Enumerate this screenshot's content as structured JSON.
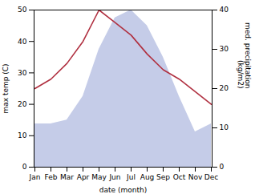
{
  "chart_data": {
    "type": "line",
    "categories": [
      "Jan",
      "Feb",
      "Mar",
      "Apr",
      "May",
      "Jun",
      "Jul",
      "Aug",
      "Sep",
      "Oct",
      "Nov",
      "Dec"
    ],
    "series": [
      {
        "type": "area",
        "axis": "y2",
        "color": "#c5cce8",
        "values": [
          11,
          11,
          12,
          18,
          30,
          38,
          40,
          36,
          28,
          18,
          9,
          11
        ]
      },
      {
        "type": "line",
        "color": "#b03040",
        "values": [
          25,
          28,
          33,
          40,
          50,
          46,
          42,
          36,
          31,
          28,
          24,
          20
        ]
      }
    ],
    "xlabel": "date (month)",
    "ylabel": "max temp (C)",
    "y2label": "med. precipitation\n(kg/m2)",
    "ylim": [
      0,
      50
    ],
    "yticks": [
      0,
      10,
      20,
      30,
      40,
      50
    ],
    "y2lim": [
      0,
      40
    ],
    "y2ticks": [
      0,
      10,
      20,
      30,
      40
    ],
    "grid": false
  }
}
